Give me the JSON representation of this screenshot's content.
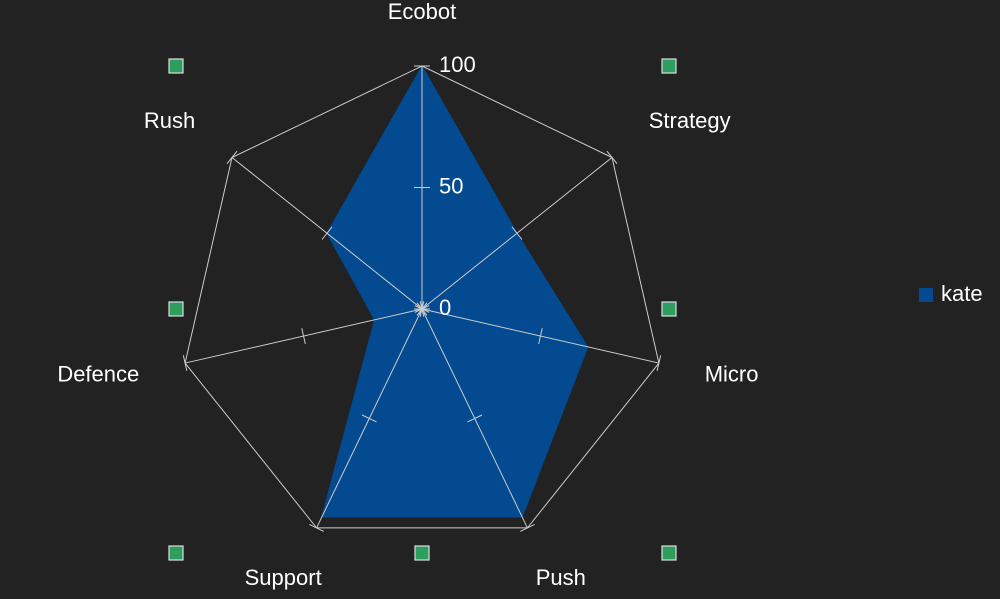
{
  "chart_data": {
    "type": "radar",
    "categories": [
      "Ecobot",
      "Strategy",
      "Micro",
      "Push",
      "Support",
      "Defence",
      "Rush"
    ],
    "series": [
      {
        "name": "kate",
        "color": "#034a90",
        "values": [
          100,
          50,
          70,
          95,
          95,
          20,
          50
        ]
      }
    ],
    "rlim": [
      0,
      100
    ],
    "rticks": [
      0,
      50,
      100
    ],
    "grid": true,
    "legend": "right"
  }
}
